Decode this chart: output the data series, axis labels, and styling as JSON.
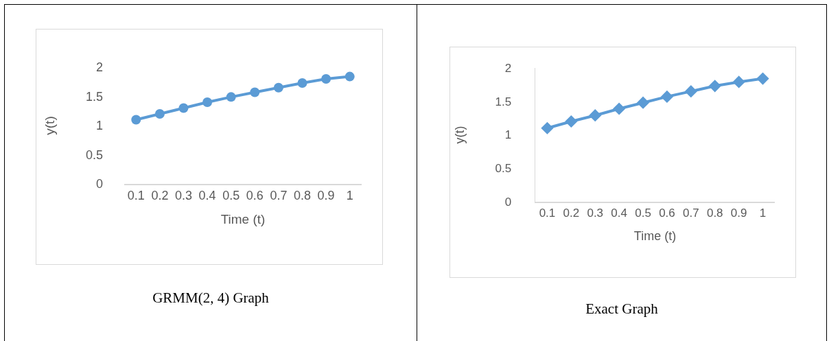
{
  "chart_data": [
    {
      "type": "line",
      "categories": [
        "0.1",
        "0.2",
        "0.3",
        "0.4",
        "0.5",
        "0.6",
        "0.7",
        "0.8",
        "0.9",
        "1"
      ],
      "xlabel": "Time (t)",
      "ylabel": "y(t)",
      "ylim": [
        0,
        2
      ],
      "yticks": [
        0,
        0.5,
        1,
        1.5,
        2
      ],
      "marker": "circle",
      "grid": false,
      "annotations": [
        "GRMM(2, 4) Graph"
      ],
      "series": [
        {
          "color": "#5b9bd5",
          "values": [
            1.1,
            1.2,
            1.3,
            1.4,
            1.49,
            1.57,
            1.65,
            1.73,
            1.8,
            1.84
          ]
        }
      ]
    },
    {
      "type": "line",
      "categories": [
        "0.1",
        "0.2",
        "0.3",
        "0.4",
        "0.5",
        "0.6",
        "0.7",
        "0.8",
        "0.9",
        "1"
      ],
      "xlabel": "Time (t)",
      "ylabel": "y(t)",
      "ylim": [
        0,
        2
      ],
      "yticks": [
        0,
        0.5,
        1,
        1.5,
        2
      ],
      "marker": "diamond",
      "grid": false,
      "annotations": [
        "Exact Graph"
      ],
      "series": [
        {
          "color": "#5b9bd5",
          "values": [
            1.1,
            1.2,
            1.29,
            1.39,
            1.48,
            1.57,
            1.65,
            1.73,
            1.79,
            1.84
          ]
        }
      ]
    }
  ]
}
